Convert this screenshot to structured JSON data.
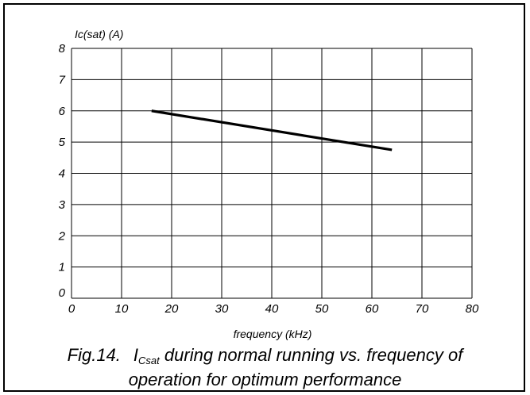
{
  "chart_data": {
    "type": "line",
    "ylabel": "Ic(sat) (A)",
    "xlabel": "frequency (kHz)",
    "xlim": [
      0,
      80
    ],
    "ylim": [
      0,
      8
    ],
    "x_ticks": [
      "0",
      "10",
      "20",
      "30",
      "40",
      "50",
      "60",
      "70",
      "80"
    ],
    "y_ticks": [
      "0",
      "1",
      "2",
      "3",
      "4",
      "5",
      "6",
      "7",
      "8"
    ],
    "grid": true,
    "series": [
      {
        "x": [
          16,
          64
        ],
        "y": [
          6.0,
          4.75
        ]
      }
    ],
    "caption": {
      "prefix": "Fig.14.",
      "symbol_base": "I",
      "symbol_sub": "Csat",
      "line1_rest": " during normal running vs. frequency of",
      "line2": "operation for optimum performance"
    }
  }
}
